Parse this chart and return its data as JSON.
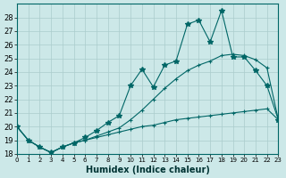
{
  "xlabel": "Humidex (Indice chaleur)",
  "background_color": "#cce8e8",
  "grid_color": "#aacccc",
  "line_color": "#006666",
  "xlim": [
    0,
    23
  ],
  "ylim": [
    18,
    29
  ],
  "xticks": [
    0,
    1,
    2,
    3,
    4,
    5,
    6,
    7,
    8,
    9,
    10,
    11,
    12,
    13,
    14,
    15,
    16,
    17,
    18,
    19,
    20,
    21,
    22,
    23
  ],
  "yticks": [
    18,
    19,
    20,
    21,
    22,
    23,
    24,
    25,
    26,
    27,
    28
  ],
  "series1_x": [
    0,
    1,
    2,
    3,
    4,
    5,
    6,
    7,
    8,
    9,
    10,
    11,
    12,
    13,
    14,
    15,
    16,
    17,
    18,
    19,
    20,
    21,
    22,
    23
  ],
  "series1_y": [
    20.0,
    19.0,
    18.5,
    18.1,
    18.5,
    18.8,
    19.0,
    19.2,
    19.4,
    19.6,
    19.8,
    20.0,
    20.1,
    20.3,
    20.5,
    20.6,
    20.7,
    20.8,
    20.9,
    21.0,
    21.1,
    21.2,
    21.3,
    20.5
  ],
  "series2_x": [
    0,
    1,
    2,
    3,
    4,
    5,
    6,
    7,
    8,
    9,
    10,
    11,
    12,
    13,
    14,
    15,
    16,
    17,
    18,
    19,
    20,
    21,
    22,
    23
  ],
  "series2_y": [
    20.0,
    19.0,
    18.5,
    18.1,
    18.5,
    18.8,
    19.0,
    19.3,
    19.6,
    19.9,
    20.5,
    21.2,
    22.0,
    22.8,
    23.5,
    24.1,
    24.5,
    24.8,
    25.2,
    25.3,
    25.2,
    24.9,
    24.3,
    20.5
  ],
  "series3_x": [
    0,
    1,
    2,
    3,
    4,
    5,
    6,
    7,
    8,
    9,
    10,
    11,
    12,
    13,
    14,
    15,
    16,
    17,
    18,
    19,
    20,
    21,
    22,
    23
  ],
  "series3_y": [
    20.0,
    19.0,
    18.5,
    18.1,
    18.5,
    18.8,
    19.2,
    19.7,
    20.3,
    20.8,
    23.0,
    24.2,
    22.9,
    24.5,
    24.8,
    27.5,
    27.8,
    26.2,
    28.5,
    25.1,
    25.1,
    24.1,
    23.0,
    20.5
  ]
}
